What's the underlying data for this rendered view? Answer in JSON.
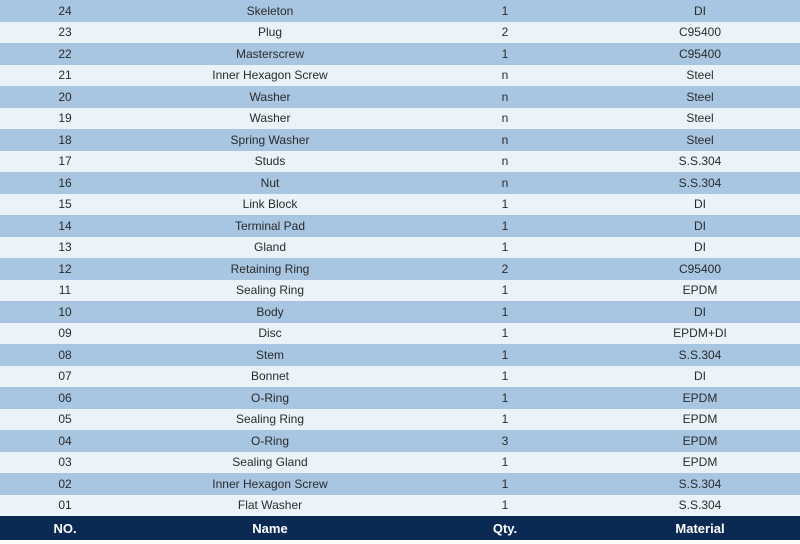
{
  "table": {
    "colors": {
      "row_dark": "#a8c6e2",
      "row_light": "#eaf4f8",
      "header_bg": "#0a2a54",
      "header_text": "#ffffff",
      "text": "#2a2a2a"
    },
    "header": {
      "no": "NO.",
      "name": "Name",
      "qty": "Qty.",
      "material": "Material"
    },
    "rows": [
      {
        "no": "24",
        "name": "Skeleton",
        "qty": "1",
        "material": "DI"
      },
      {
        "no": "23",
        "name": "Plug",
        "qty": "2",
        "material": "C95400"
      },
      {
        "no": "22",
        "name": "Masterscrew",
        "qty": "1",
        "material": "C95400"
      },
      {
        "no": "21",
        "name": "Inner Hexagon Screw",
        "qty": "n",
        "material": "Steel"
      },
      {
        "no": "20",
        "name": "Washer",
        "qty": "n",
        "material": "Steel"
      },
      {
        "no": "19",
        "name": "Washer",
        "qty": "n",
        "material": "Steel"
      },
      {
        "no": "18",
        "name": "Spring Washer",
        "qty": "n",
        "material": "Steel"
      },
      {
        "no": "17",
        "name": "Studs",
        "qty": "n",
        "material": "S.S.304"
      },
      {
        "no": "16",
        "name": "Nut",
        "qty": "n",
        "material": "S.S.304"
      },
      {
        "no": "15",
        "name": "Link Block",
        "qty": "1",
        "material": "DI"
      },
      {
        "no": "14",
        "name": "Terminal Pad",
        "qty": "1",
        "material": "DI"
      },
      {
        "no": "13",
        "name": "Gland",
        "qty": "1",
        "material": "DI"
      },
      {
        "no": "12",
        "name": "Retaining Ring",
        "qty": "2",
        "material": "C95400"
      },
      {
        "no": "11",
        "name": "Sealing Ring",
        "qty": "1",
        "material": "EPDM"
      },
      {
        "no": "10",
        "name": "Body",
        "qty": "1",
        "material": "DI"
      },
      {
        "no": "09",
        "name": "Disc",
        "qty": "1",
        "material": "EPDM+DI"
      },
      {
        "no": "08",
        "name": "Stem",
        "qty": "1",
        "material": "S.S.304"
      },
      {
        "no": "07",
        "name": "Bonnet",
        "qty": "1",
        "material": "DI"
      },
      {
        "no": "06",
        "name": "O-Ring",
        "qty": "1",
        "material": "EPDM"
      },
      {
        "no": "05",
        "name": "Sealing Ring",
        "qty": "1",
        "material": "EPDM"
      },
      {
        "no": "04",
        "name": "O-Ring",
        "qty": "3",
        "material": "EPDM"
      },
      {
        "no": "03",
        "name": "Sealing Gland",
        "qty": "1",
        "material": "EPDM"
      },
      {
        "no": "02",
        "name": "Inner Hexagon Screw",
        "qty": "1",
        "material": "S.S.304"
      },
      {
        "no": "01",
        "name": "Flat Washer",
        "qty": "1",
        "material": "S.S.304"
      }
    ]
  }
}
